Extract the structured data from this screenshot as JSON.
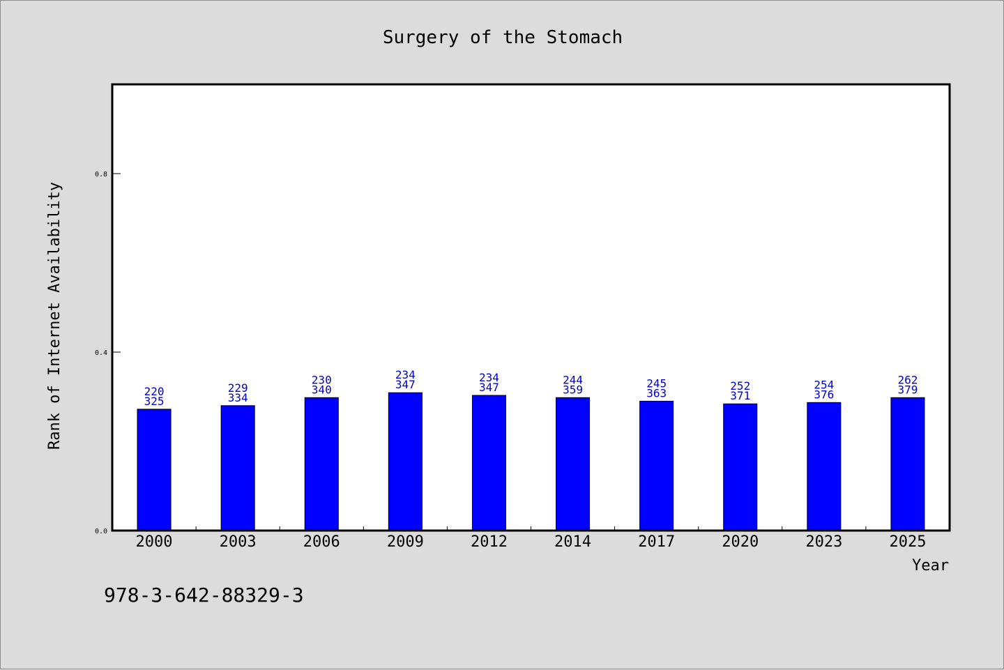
{
  "chart_data": {
    "type": "bar",
    "title": "Surgery of the Stomach",
    "xlabel": "Year",
    "ylabel": "Rank of Internet Availability",
    "ylim": [
      0,
      1.0
    ],
    "yticks": [
      "0.0",
      "0.4",
      "0.8"
    ],
    "categories": [
      "2000",
      "2003",
      "2006",
      "2009",
      "2012",
      "2014",
      "2017",
      "2020",
      "2023",
      "2025"
    ],
    "values": [
      0.272,
      0.28,
      0.298,
      0.309,
      0.303,
      0.298,
      0.29,
      0.284,
      0.287,
      0.298
    ],
    "labels_top": [
      "220",
      "229",
      "230",
      "234",
      "234",
      "244",
      "245",
      "252",
      "254",
      "262"
    ],
    "labels_bottom": [
      "325",
      "334",
      "340",
      "347",
      "347",
      "359",
      "363",
      "371",
      "376",
      "379"
    ],
    "bar_color": "#0000ff",
    "label_color": "#0000cc",
    "grid": false
  },
  "footer": {
    "isbn": "978-3-642-88329-3"
  }
}
